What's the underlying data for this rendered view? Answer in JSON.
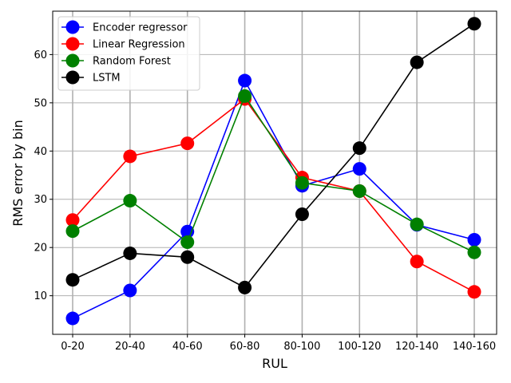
{
  "chart_data": {
    "type": "line",
    "categories": [
      "0-20",
      "20-40",
      "40-60",
      "60-80",
      "80-100",
      "100-120",
      "120-140",
      "140-160"
    ],
    "xlabel": "RUL",
    "ylabel": "RMS error by bin",
    "ylim": [
      2,
      69
    ],
    "yticks": [
      10,
      20,
      30,
      40,
      50,
      60
    ],
    "grid": true,
    "legend_position": "upper-left",
    "series": [
      {
        "name": "Encoder regressor",
        "color": "#0000ff",
        "values": [
          5.3,
          11.1,
          23.3,
          54.6,
          32.8,
          36.3,
          24.7,
          21.6
        ]
      },
      {
        "name": "Linear Regression",
        "color": "#ff0000",
        "values": [
          25.7,
          38.9,
          41.6,
          50.8,
          34.5,
          31.7,
          17.1,
          10.8
        ]
      },
      {
        "name": "Random Forest",
        "color": "#008000",
        "values": [
          23.4,
          29.7,
          21.1,
          51.4,
          33.4,
          31.7,
          24.8,
          19.0
        ]
      },
      {
        "name": "LSTM",
        "color": "#000000",
        "values": [
          13.3,
          18.8,
          18.0,
          11.7,
          26.9,
          40.6,
          58.4,
          66.4
        ]
      }
    ]
  }
}
